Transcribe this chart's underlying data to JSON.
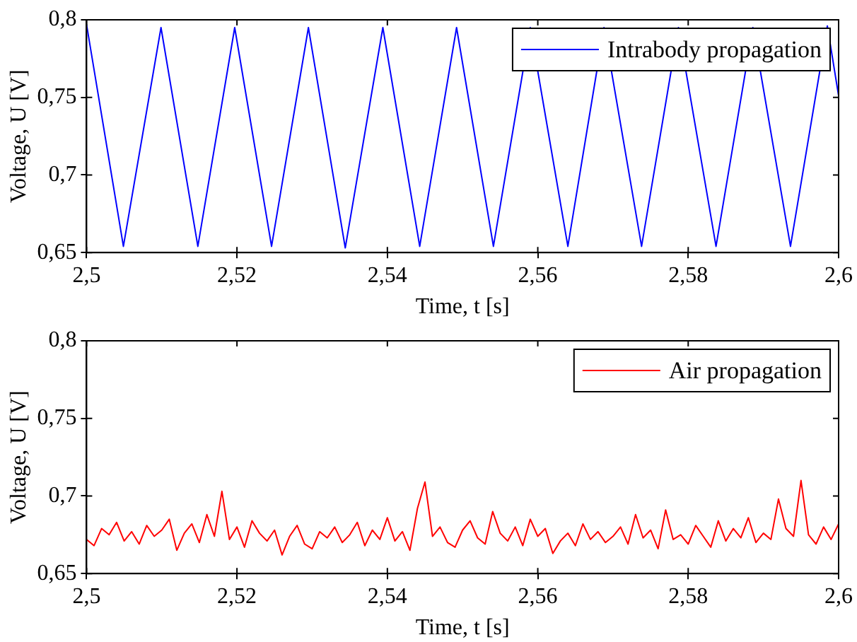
{
  "chart_data": [
    {
      "type": "line",
      "xlabel": "Time, t [s]",
      "ylabel": "Voltage, U [V]",
      "xlim": [
        2.5,
        2.6
      ],
      "ylim": [
        0.65,
        0.8
      ],
      "xticks": [
        {
          "value": 2.5,
          "label": "2,5"
        },
        {
          "value": 2.52,
          "label": "2,52"
        },
        {
          "value": 2.54,
          "label": "2,54"
        },
        {
          "value": 2.56,
          "label": "2,56"
        },
        {
          "value": 2.58,
          "label": "2,58"
        },
        {
          "value": 2.6,
          "label": "2,6"
        }
      ],
      "yticks": [
        {
          "value": 0.65,
          "label": "0,65"
        },
        {
          "value": 0.7,
          "label": "0,7"
        },
        {
          "value": 0.75,
          "label": "0,75"
        },
        {
          "value": 0.8,
          "label": "0,8"
        }
      ],
      "grid": false,
      "legend": "top right",
      "marker": "none",
      "series": [
        {
          "name": "Intrabody propagation",
          "color": "#0000ff",
          "x": [
            2.5,
            2.5049,
            2.5099,
            2.5148,
            2.5197,
            2.5246,
            2.5295,
            2.5344,
            2.5394,
            2.5443,
            2.5492,
            2.5541,
            2.559,
            2.564,
            2.5688,
            2.5738,
            2.5787,
            2.5837,
            2.5886,
            2.5936,
            2.5985,
            2.6
          ],
          "values": [
            0.797,
            0.654,
            0.795,
            0.654,
            0.795,
            0.654,
            0.795,
            0.653,
            0.795,
            0.654,
            0.795,
            0.654,
            0.795,
            0.654,
            0.795,
            0.654,
            0.795,
            0.654,
            0.795,
            0.654,
            0.796,
            0.751
          ]
        }
      ]
    },
    {
      "type": "line",
      "xlabel": "Time, t [s]",
      "ylabel": "Voltage, U [V]",
      "xlim": [
        2.5,
        2.6
      ],
      "ylim": [
        0.65,
        0.8
      ],
      "xticks": [
        {
          "value": 2.5,
          "label": "2,5"
        },
        {
          "value": 2.52,
          "label": "2,52"
        },
        {
          "value": 2.54,
          "label": "2,54"
        },
        {
          "value": 2.56,
          "label": "2,56"
        },
        {
          "value": 2.58,
          "label": "2,58"
        },
        {
          "value": 2.6,
          "label": "2,6"
        }
      ],
      "yticks": [
        {
          "value": 0.65,
          "label": "0,65"
        },
        {
          "value": 0.7,
          "label": "0,7"
        },
        {
          "value": 0.75,
          "label": "0,75"
        },
        {
          "value": 0.8,
          "label": "0,8"
        }
      ],
      "grid": false,
      "legend": "top right",
      "marker": "none",
      "series": [
        {
          "name": "Air propagation",
          "color": "#ff0000",
          "x": [
            2.5,
            2.501,
            2.502,
            2.503,
            2.504,
            2.505,
            2.506,
            2.507,
            2.508,
            2.509,
            2.51,
            2.511,
            2.512,
            2.513,
            2.514,
            2.515,
            2.516,
            2.517,
            2.518,
            2.519,
            2.52,
            2.521,
            2.522,
            2.523,
            2.524,
            2.525,
            2.526,
            2.527,
            2.528,
            2.529,
            2.53,
            2.531,
            2.532,
            2.533,
            2.534,
            2.535,
            2.536,
            2.537,
            2.538,
            2.539,
            2.54,
            2.541,
            2.542,
            2.543,
            2.544,
            2.545,
            2.546,
            2.547,
            2.548,
            2.549,
            2.55,
            2.551,
            2.552,
            2.553,
            2.554,
            2.555,
            2.556,
            2.557,
            2.558,
            2.559,
            2.56,
            2.561,
            2.562,
            2.563,
            2.564,
            2.565,
            2.566,
            2.567,
            2.568,
            2.569,
            2.57,
            2.571,
            2.572,
            2.573,
            2.574,
            2.575,
            2.576,
            2.577,
            2.578,
            2.579,
            2.58,
            2.581,
            2.582,
            2.583,
            2.584,
            2.585,
            2.586,
            2.587,
            2.588,
            2.589,
            2.59,
            2.591,
            2.592,
            2.593,
            2.594,
            2.595,
            2.596,
            2.597,
            2.598,
            2.599,
            2.6
          ],
          "values": [
            0.672,
            0.668,
            0.679,
            0.675,
            0.683,
            0.671,
            0.677,
            0.669,
            0.681,
            0.674,
            0.678,
            0.685,
            0.665,
            0.676,
            0.682,
            0.67,
            0.688,
            0.674,
            0.703,
            0.672,
            0.68,
            0.667,
            0.684,
            0.676,
            0.671,
            0.678,
            0.662,
            0.674,
            0.681,
            0.669,
            0.666,
            0.677,
            0.673,
            0.68,
            0.67,
            0.675,
            0.683,
            0.668,
            0.678,
            0.672,
            0.686,
            0.671,
            0.677,
            0.665,
            0.692,
            0.709,
            0.674,
            0.68,
            0.67,
            0.667,
            0.678,
            0.684,
            0.673,
            0.669,
            0.69,
            0.676,
            0.671,
            0.68,
            0.668,
            0.685,
            0.674,
            0.679,
            0.663,
            0.671,
            0.676,
            0.668,
            0.682,
            0.672,
            0.677,
            0.67,
            0.674,
            0.68,
            0.669,
            0.688,
            0.673,
            0.678,
            0.666,
            0.691,
            0.672,
            0.675,
            0.669,
            0.681,
            0.674,
            0.667,
            0.684,
            0.671,
            0.679,
            0.673,
            0.686,
            0.67,
            0.676,
            0.672,
            0.698,
            0.679,
            0.674,
            0.71,
            0.675,
            0.669,
            0.68,
            0.672,
            0.682
          ]
        }
      ]
    }
  ]
}
